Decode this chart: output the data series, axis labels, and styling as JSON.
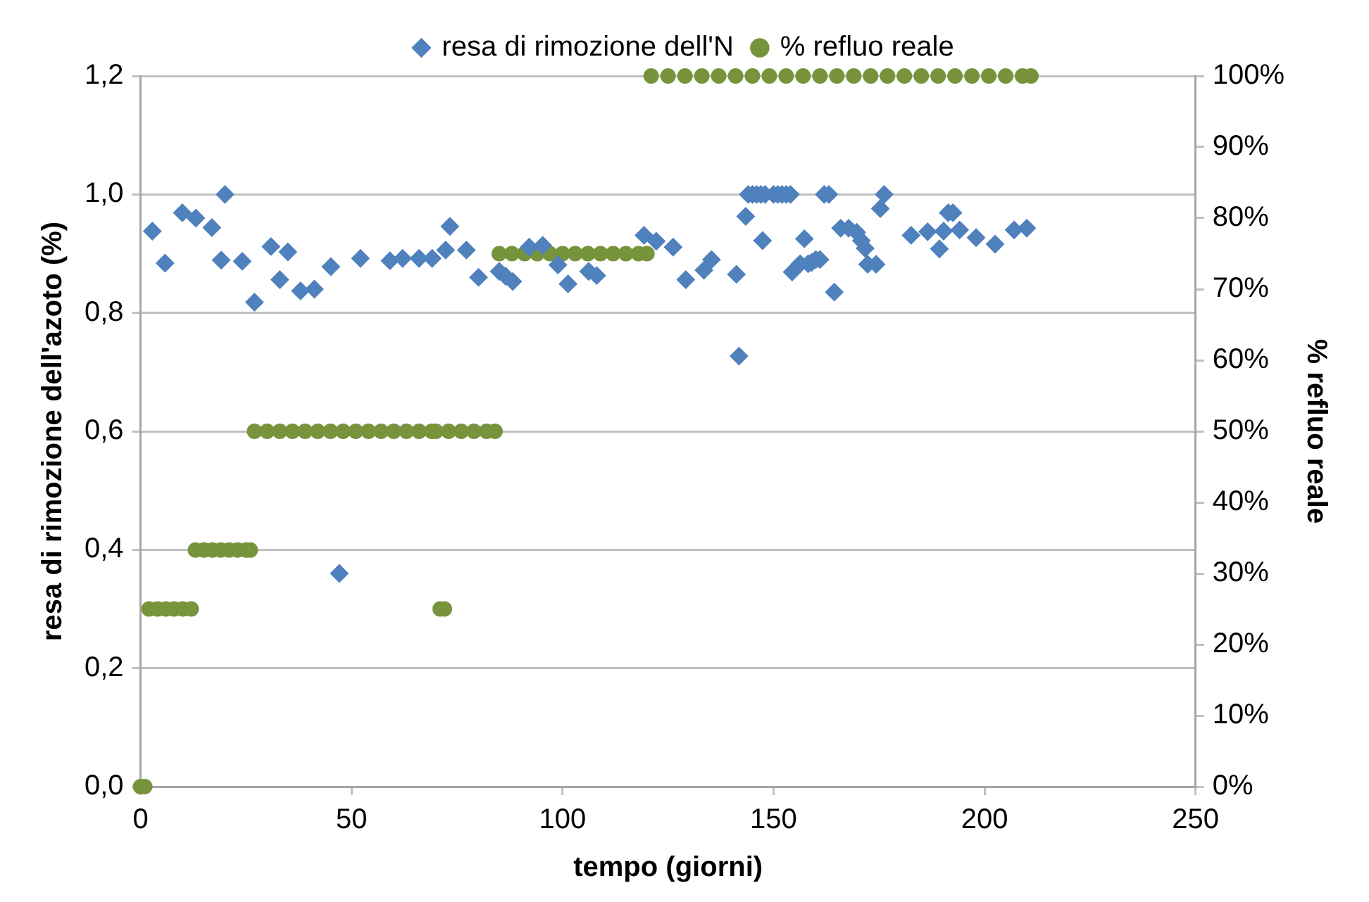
{
  "chart_data": {
    "type": "scatter",
    "xlabel": "tempo (giorni)",
    "ylabel": "resa di rimozione dell'azoto (%)",
    "y2label": "% refluo reale",
    "xlim": [
      0,
      250
    ],
    "xticks": [
      0,
      50,
      100,
      150,
      200,
      250
    ],
    "ylim": [
      0,
      1.2
    ],
    "yticks": [
      {
        "value": 0,
        "label": "0,0"
      },
      {
        "value": 0.2,
        "label": "0,2"
      },
      {
        "value": 0.4,
        "label": "0,4"
      },
      {
        "value": 0.6,
        "label": "0,6"
      },
      {
        "value": 0.8,
        "label": "0,8"
      },
      {
        "value": 1.0,
        "label": "1,0"
      },
      {
        "value": 1.2,
        "label": "1,2"
      }
    ],
    "y2lim": [
      0,
      100
    ],
    "y2ticks": [
      {
        "value": 0,
        "label": "0%"
      },
      {
        "value": 10,
        "label": "10%"
      },
      {
        "value": 20,
        "label": "20%"
      },
      {
        "value": 30,
        "label": "30%"
      },
      {
        "value": 40,
        "label": "40%"
      },
      {
        "value": 50,
        "label": "50%"
      },
      {
        "value": 60,
        "label": "60%"
      },
      {
        "value": 70,
        "label": "70%"
      },
      {
        "value": 80,
        "label": "80%"
      },
      {
        "value": 90,
        "label": "90%"
      },
      {
        "value": 100,
        "label": "100%"
      }
    ],
    "grid": "y",
    "legend": "top",
    "series": [
      {
        "name": "resa di rimozione dell'N",
        "color": "#4f81bd",
        "marker": "diamond",
        "x": [
          2.8,
          5.8,
          9.9,
          13.1,
          16.9,
          20,
          19.1,
          24.1,
          27,
          30.9,
          33,
          34.9,
          37.9,
          41.2,
          45.1,
          47.1,
          52.1,
          59.1,
          62.1,
          66,
          69.1,
          72.3,
          73.3,
          77.2,
          80.1,
          85,
          86.5,
          88.2,
          92.1,
          95.3,
          98.9,
          101.3,
          106.2,
          108.1,
          119.3,
          122.2,
          126.2,
          129.2,
          133.5,
          135.3,
          141.2,
          141.8,
          143.4,
          144,
          145,
          146,
          147,
          148,
          150,
          151,
          152,
          153,
          154,
          147.4,
          154.4,
          156.3,
          157.3,
          158.2,
          159,
          160,
          161,
          162,
          163.1,
          164.4,
          165.9,
          167.8,
          169.7,
          170.8,
          171.7,
          172.3,
          174.3,
          175.3,
          176.2,
          182.6,
          186.5,
          189.3,
          190.3,
          191.4,
          192.5,
          194.1,
          198,
          202.5,
          207,
          210
        ],
        "values": [
          0.938,
          0.884,
          0.969,
          0.96,
          0.944,
          1.0,
          0.889,
          0.887,
          0.818,
          0.912,
          0.856,
          0.903,
          0.837,
          0.84,
          0.878,
          0.36,
          0.892,
          0.888,
          0.892,
          0.892,
          0.892,
          0.906,
          0.946,
          0.906,
          0.86,
          0.87,
          0.862,
          0.853,
          0.911,
          0.914,
          0.881,
          0.849,
          0.87,
          0.863,
          0.931,
          0.921,
          0.911,
          0.856,
          0.872,
          0.89,
          0.865,
          0.727,
          0.963,
          1.0,
          1.0,
          1.0,
          1.0,
          1.0,
          1.0,
          1.0,
          1.0,
          1.0,
          1.0,
          0.922,
          0.869,
          0.883,
          0.925,
          0.883,
          0.885,
          0.89,
          0.89,
          1.0,
          1.0,
          0.835,
          0.943,
          0.943,
          0.936,
          0.922,
          0.909,
          0.882,
          0.882,
          0.976,
          1.0,
          0.931,
          0.937,
          0.908,
          0.938,
          0.969,
          0.969,
          0.94,
          0.927,
          0.916,
          0.94,
          0.943
        ]
      },
      {
        "name": "% refluo reale",
        "color": "#77933c",
        "marker": "circle",
        "axis": "y2",
        "x": [
          0,
          1,
          2,
          4,
          6,
          8,
          10,
          12,
          13,
          15,
          17,
          19,
          21,
          23,
          25,
          26,
          27,
          30,
          33,
          36,
          39,
          42,
          45,
          48,
          51,
          54,
          57,
          60,
          63,
          66,
          69,
          70,
          71,
          72,
          73,
          76,
          79,
          82,
          84,
          85,
          88,
          91,
          94,
          97,
          100,
          103,
          106,
          109,
          112,
          115,
          118,
          120,
          121,
          125,
          129,
          133,
          137,
          141,
          145,
          149,
          153,
          157,
          161,
          165,
          169,
          173,
          177,
          181,
          185,
          189,
          193,
          197,
          201,
          205,
          209,
          211
        ],
        "values": [
          0,
          0,
          25,
          25,
          25,
          25,
          25,
          25,
          33.3,
          33.3,
          33.3,
          33.3,
          33.3,
          33.3,
          33.3,
          33.3,
          50,
          50,
          50,
          50,
          50,
          50,
          50,
          50,
          50,
          50,
          50,
          50,
          50,
          50,
          50,
          50,
          25,
          25,
          50,
          50,
          50,
          50,
          50,
          75,
          75,
          75,
          75,
          75,
          75,
          75,
          75,
          75,
          75,
          75,
          75,
          75,
          100,
          100,
          100,
          100,
          100,
          100,
          100,
          100,
          100,
          100,
          100,
          100,
          100,
          100,
          100,
          100,
          100,
          100,
          100,
          100,
          100,
          100,
          100,
          100
        ]
      }
    ]
  }
}
